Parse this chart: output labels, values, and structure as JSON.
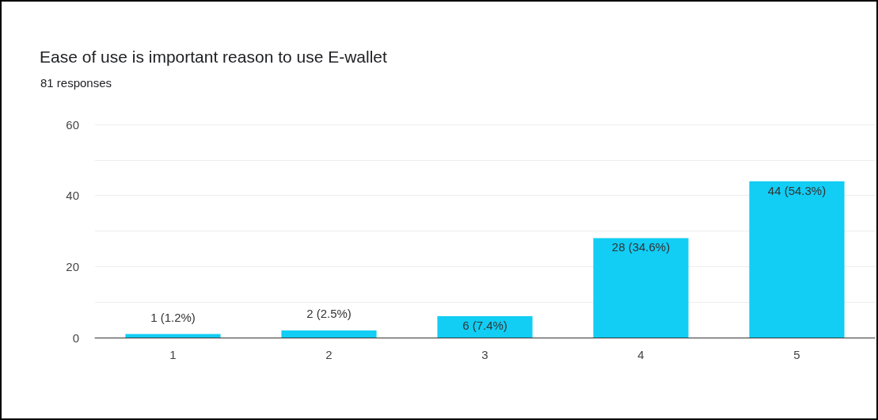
{
  "chart_data": {
    "type": "bar",
    "title": "Ease of use is important reason to use E-wallet",
    "subtitle": "81 responses",
    "categories": [
      "1",
      "2",
      "3",
      "4",
      "5"
    ],
    "values": [
      1,
      2,
      6,
      28,
      44
    ],
    "value_labels": [
      "1 (1.2%)",
      "2 (2.5%)",
      "6 (7.4%)",
      "28 (34.6%)",
      "44 (54.3%)"
    ],
    "color": "#12cdf4",
    "ylim": [
      0,
      60
    ],
    "yticks": [
      0,
      {
        "value": 10,
        "label": null
      },
      20,
      {
        "value": 30,
        "label": null
      },
      40,
      {
        "value": 50,
        "label": null
      },
      60
    ],
    "grid": true
  }
}
